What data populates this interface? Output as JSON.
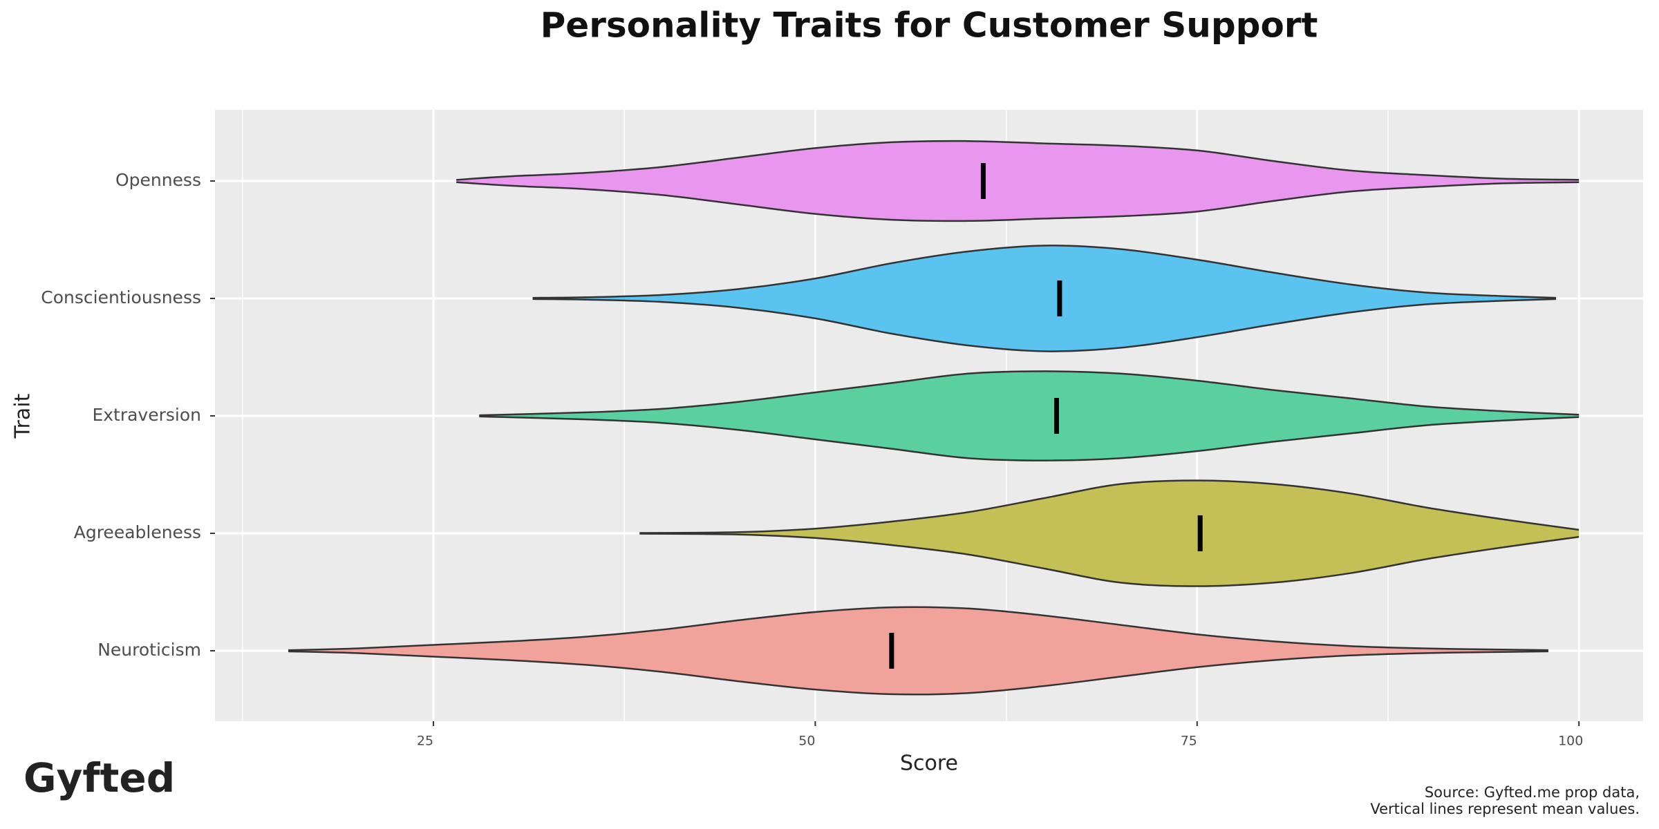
{
  "brand": "Gyfted",
  "chart_data": {
    "type": "violin",
    "title": "Personality Traits for Customer Support",
    "xlabel": "Score",
    "ylabel": "Trait",
    "caption": [
      "Source: Gyfted.me prop data,",
      "Vertical lines represent mean values."
    ],
    "xlim": [
      10.7,
      104.2
    ],
    "xticks": [
      25,
      50,
      75,
      100
    ],
    "xminor_ticks": [
      12.5,
      37.5,
      62.5,
      87.5
    ],
    "grid": true,
    "series": [
      {
        "name": "Openness",
        "color": "#e996ef",
        "mean": 61,
        "profile_x": [
          26.5,
          30,
          35,
          40,
          45,
          50,
          55,
          60,
          65,
          70,
          75,
          80,
          85,
          90,
          95,
          100
        ],
        "profile_width": [
          0.01,
          0.04,
          0.07,
          0.12,
          0.2,
          0.28,
          0.33,
          0.34,
          0.32,
          0.3,
          0.26,
          0.17,
          0.09,
          0.05,
          0.02,
          0.01
        ]
      },
      {
        "name": "Conscientiousness",
        "color": "#5ac3ef",
        "mean": 66,
        "profile_x": [
          31.5,
          35,
          40,
          45,
          50,
          55,
          60,
          65,
          70,
          75,
          80,
          85,
          90,
          95,
          98.5
        ],
        "profile_width": [
          0.005,
          0.01,
          0.03,
          0.08,
          0.17,
          0.3,
          0.4,
          0.45,
          0.42,
          0.33,
          0.22,
          0.12,
          0.05,
          0.02,
          0.005
        ]
      },
      {
        "name": "Extraversion",
        "color": "#5ad0a0",
        "mean": 65.8,
        "profile_x": [
          28,
          35,
          40,
          45,
          50,
          55,
          60,
          65,
          70,
          75,
          80,
          85,
          90,
          95,
          100
        ],
        "profile_width": [
          0.005,
          0.03,
          0.06,
          0.12,
          0.2,
          0.28,
          0.36,
          0.38,
          0.36,
          0.3,
          0.22,
          0.15,
          0.08,
          0.04,
          0.01
        ]
      },
      {
        "name": "Agreeableness",
        "color": "#c4c055",
        "mean": 75.2,
        "profile_x": [
          38.5,
          45,
          50,
          55,
          60,
          65,
          70,
          75,
          80,
          85,
          90,
          95,
          100
        ],
        "profile_width": [
          0.003,
          0.01,
          0.04,
          0.1,
          0.18,
          0.3,
          0.42,
          0.45,
          0.42,
          0.34,
          0.22,
          0.12,
          0.03
        ]
      },
      {
        "name": "Neuroticism",
        "color": "#f0a29b",
        "mean": 55,
        "profile_x": [
          15.5,
          20,
          25,
          30,
          35,
          40,
          45,
          50,
          55,
          60,
          65,
          70,
          75,
          80,
          85,
          90,
          95,
          98
        ],
        "profile_width": [
          0.005,
          0.02,
          0.05,
          0.08,
          0.12,
          0.18,
          0.26,
          0.33,
          0.37,
          0.36,
          0.3,
          0.22,
          0.14,
          0.08,
          0.04,
          0.02,
          0.01,
          0.005
        ]
      }
    ]
  }
}
